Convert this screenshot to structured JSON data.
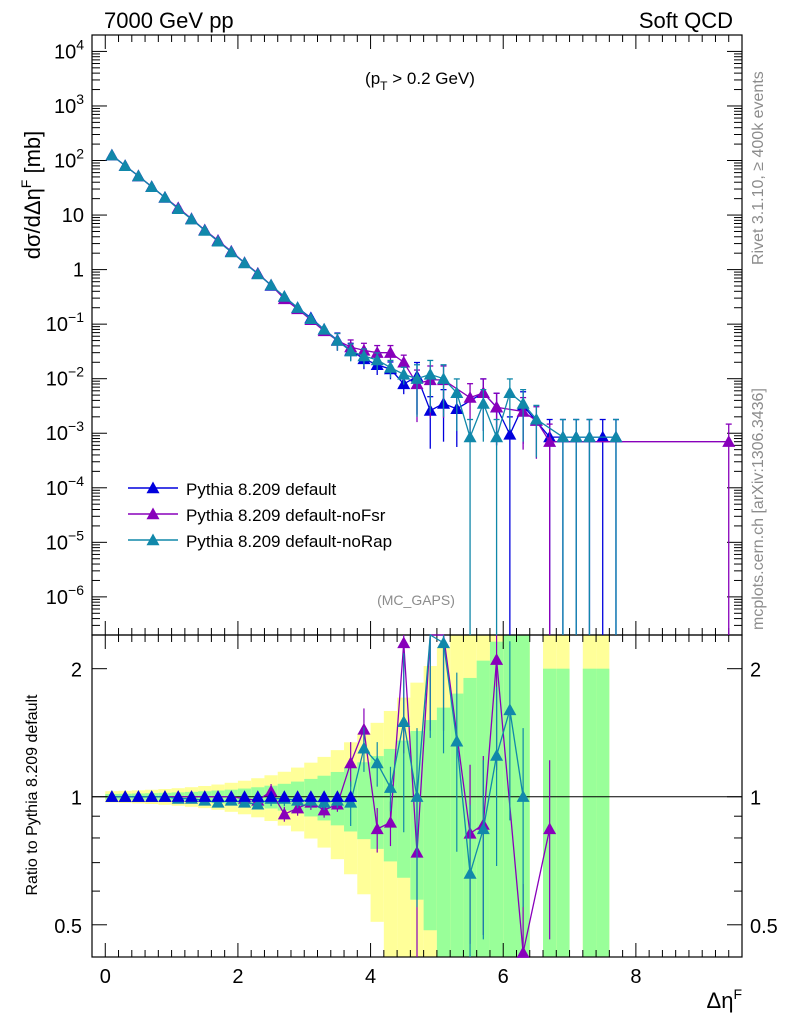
{
  "header": {
    "left": "7000 GeV pp",
    "right": "Soft QCD"
  },
  "side_labels": {
    "top": "Rivet 3.1.10, ≥ 400k events",
    "bottom": "mcplots.cern.ch [arXiv:1306.3436]"
  },
  "chart_data": {
    "type": "line",
    "annotation": "(p_T > 0.2 GeV)",
    "watermark": "(MC_GAPS)",
    "xlabel": "Δη^F",
    "ylabel": "dσ/dΔη^F [mb]",
    "ratio_ylabel": "Ratio to Pythia 8.209 default",
    "xlim": [
      -0.2,
      9.6
    ],
    "ylim": [
      2e-07,
      20000
    ],
    "ylog": true,
    "ratio_ylim": [
      0.42,
      2.4
    ],
    "ratio_ylog": true,
    "x_ticks": [
      "0",
      "2",
      "4",
      "6",
      "8"
    ],
    "y_ticks": [
      "10^4",
      "10^3",
      "10^2",
      "10",
      "1",
      "10^-1",
      "10^-2",
      "10^-3",
      "10^-4",
      "10^-5",
      "10^-6"
    ],
    "ratio_ticks": [
      "0.5",
      "1",
      "2"
    ],
    "legend_position": "bottom-left",
    "series": [
      {
        "name": "Pythia 8.209 default",
        "color": "#0000dd",
        "x": [
          0.1,
          0.3,
          0.5,
          0.7,
          0.9,
          1.1,
          1.3,
          1.5,
          1.7,
          1.9,
          2.1,
          2.3,
          2.5,
          2.7,
          2.9,
          3.1,
          3.3,
          3.5,
          3.7,
          3.9,
          4.1,
          4.3,
          4.5,
          4.7,
          4.9,
          5.1,
          5.3,
          5.7,
          5.9,
          6.1,
          6.3,
          6.7,
          6.9,
          7.1,
          7.3,
          7.5,
          7.7
        ],
        "y": [
          125,
          80,
          52,
          33,
          21,
          13.5,
          8.5,
          5.3,
          3.4,
          2.15,
          1.33,
          0.85,
          0.51,
          0.32,
          0.2,
          0.13,
          0.08,
          0.051,
          0.033,
          0.023,
          0.018,
          0.015,
          0.008,
          0.011,
          0.0026,
          0.0035,
          0.0028,
          0.0055,
          0.003,
          0.00095,
          0.0032,
          0.00085,
          0.00085,
          0.00085,
          0.00085,
          0.00085,
          0.00085
        ]
      },
      {
        "name": "Pythia 8.209 default-noFsr",
        "color": "#8800bb",
        "x": [
          0.1,
          0.3,
          0.5,
          0.7,
          0.9,
          1.1,
          1.3,
          1.5,
          1.7,
          1.9,
          2.1,
          2.3,
          2.5,
          2.7,
          2.9,
          3.1,
          3.3,
          3.5,
          3.7,
          3.9,
          4.1,
          4.3,
          4.5,
          4.7,
          4.9,
          5.1,
          5.5,
          5.7,
          5.9,
          6.3,
          6.5,
          6.7,
          9.4
        ],
        "y": [
          125,
          80,
          52,
          33,
          21,
          13.5,
          8.5,
          5.3,
          3.4,
          2.15,
          1.33,
          0.85,
          0.52,
          0.29,
          0.19,
          0.12,
          0.075,
          0.05,
          0.038,
          0.033,
          0.03,
          0.03,
          0.02,
          0.008,
          0.0095,
          0.0095,
          0.0045,
          0.0055,
          0.003,
          0.0025,
          0.0017,
          0.0007,
          0.0007
        ]
      },
      {
        "name": "Pythia 8.209 default-noRap",
        "color": "#1188aa",
        "x": [
          0.1,
          0.3,
          0.5,
          0.7,
          0.9,
          1.1,
          1.3,
          1.5,
          1.7,
          1.9,
          2.1,
          2.3,
          2.5,
          2.7,
          2.9,
          3.1,
          3.3,
          3.5,
          3.7,
          3.9,
          4.1,
          4.3,
          4.5,
          4.7,
          4.9,
          5.1,
          5.3,
          5.5,
          5.7,
          5.9,
          6.1,
          6.3,
          6.5,
          6.9,
          7.1,
          7.3,
          7.7
        ],
        "y": [
          125,
          80,
          52,
          33,
          21,
          13,
          8.4,
          5.2,
          3.3,
          2.1,
          1.32,
          0.83,
          0.52,
          0.32,
          0.2,
          0.125,
          0.08,
          0.05,
          0.032,
          0.026,
          0.022,
          0.016,
          0.012,
          0.01,
          0.012,
          0.01,
          0.0055,
          0.00085,
          0.0035,
          0.00085,
          0.0055,
          0.0035,
          0.0018,
          0.00085,
          0.00085,
          0.00085,
          0.00085
        ]
      }
    ],
    "ratio_series": [
      {
        "name": "Pythia 8.209 default-noFsr",
        "x": [
          0.1,
          0.3,
          0.5,
          0.7,
          0.9,
          1.1,
          1.3,
          1.5,
          1.7,
          1.9,
          2.1,
          2.3,
          2.5,
          2.7,
          2.9,
          3.1,
          3.3,
          3.5,
          3.7,
          3.9,
          4.1,
          4.3,
          4.5,
          4.7,
          4.9,
          5.1,
          5.5,
          5.7,
          5.9,
          6.3,
          6.7
        ],
        "y": [
          1.0,
          1.0,
          1.0,
          1.0,
          1.0,
          1.0,
          1.0,
          1.0,
          1.0,
          1.0,
          0.99,
          0.98,
          1.03,
          0.91,
          0.94,
          0.97,
          0.93,
          0.96,
          1.2,
          1.44,
          0.84,
          0.87,
          2.3,
          0.74,
          2.6,
          2.6,
          0.82,
          0.86,
          2.1,
          0.43,
          0.84
        ]
      },
      {
        "name": "Pythia 8.209 default-noRap",
        "x": [
          0.1,
          0.3,
          0.5,
          0.7,
          0.9,
          1.1,
          1.3,
          1.5,
          1.7,
          1.9,
          2.1,
          2.3,
          2.5,
          2.7,
          2.9,
          3.1,
          3.3,
          3.5,
          3.7,
          3.9,
          4.1,
          4.3,
          4.5,
          4.7,
          4.9,
          5.1,
          5.3,
          5.5,
          5.7,
          5.9,
          6.1,
          6.3
        ],
        "y": [
          1.0,
          1.0,
          1.0,
          1.0,
          1.0,
          0.99,
          0.99,
          0.98,
          0.97,
          0.98,
          0.97,
          0.96,
          0.99,
          0.99,
          0.98,
          0.98,
          0.97,
          0.98,
          0.97,
          1.3,
          1.2,
          1.05,
          1.5,
          1.0,
          2.5,
          2.3,
          1.35,
          0.66,
          0.84,
          1.25,
          1.6,
          1.0
        ]
      }
    ]
  }
}
